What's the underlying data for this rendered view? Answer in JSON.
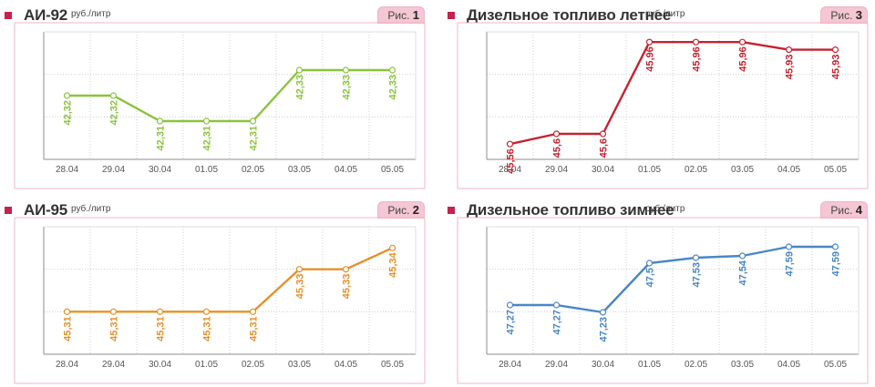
{
  "charts": [
    {
      "id": "ai92",
      "title": "АИ-92",
      "unit": "руб./литр",
      "fig_prefix": "Рис.",
      "fig_num": "1",
      "color": "#8ac43f",
      "chart_data": {
        "type": "line",
        "categories": [
          "28.04",
          "29.04",
          "30.04",
          "01.05",
          "02.05",
          "03.05",
          "04.05",
          "05.05"
        ],
        "series": [
          {
            "values": [
              42.32,
              42.32,
              42.31,
              42.31,
              42.31,
              42.33,
              42.33,
              42.33
            ]
          }
        ],
        "labels": [
          "42,32",
          "42,32",
          "42,31",
          "42,31",
          "42,31",
          "42,33",
          "42,33",
          "42,33"
        ],
        "ylim": [
          42.295,
          42.345
        ],
        "grid": true
      }
    },
    {
      "id": "dt-summer",
      "title": "Дизельное топливо летнее",
      "unit": "руб./литр",
      "fig_prefix": "Рис.",
      "fig_num": "3",
      "color": "#c42330",
      "chart_data": {
        "type": "line",
        "categories": [
          "28.04",
          "29.04",
          "30.04",
          "01.05",
          "02.05",
          "03.05",
          "04.05",
          "05.05"
        ],
        "series": [
          {
            "values": [
              45.56,
              45.6,
              45.6,
              45.96,
              45.96,
              45.96,
              45.93,
              45.93
            ]
          }
        ],
        "labels": [
          "45,56",
          "45,6",
          "45,6",
          "45,96",
          "45,96",
          "45,96",
          "45,93",
          "45,93"
        ],
        "ylim": [
          45.5,
          46.0
        ],
        "grid": true
      }
    },
    {
      "id": "ai95",
      "title": "АИ-95",
      "unit": "руб./литр",
      "fig_prefix": "Рис.",
      "fig_num": "2",
      "color": "#e8902a",
      "chart_data": {
        "type": "line",
        "categories": [
          "28.04",
          "29.04",
          "30.04",
          "01.05",
          "02.05",
          "03.05",
          "04.05",
          "05.05"
        ],
        "series": [
          {
            "values": [
              45.31,
              45.31,
              45.31,
              45.31,
              45.31,
              45.33,
              45.33,
              45.34
            ]
          }
        ],
        "labels": [
          "45,31",
          "45,31",
          "45,31",
          "45,31",
          "45,31",
          "45,33",
          "45,33",
          "45,34"
        ],
        "ylim": [
          45.29,
          45.35
        ],
        "grid": true
      }
    },
    {
      "id": "dt-winter",
      "title": "Дизельное топливо зимнее",
      "unit": "руб./литр",
      "fig_prefix": "Рис.",
      "fig_num": "4",
      "color": "#4a86c6",
      "chart_data": {
        "type": "line",
        "categories": [
          "28.04",
          "29.04",
          "30.04",
          "01.05",
          "02.05",
          "03.05",
          "04.05",
          "05.05"
        ],
        "series": [
          {
            "values": [
              47.27,
              47.27,
              47.23,
              47.5,
              47.53,
              47.54,
              47.59,
              47.59
            ]
          }
        ],
        "labels": [
          "47,27",
          "47,27",
          "47,23",
          "47,5",
          "47,53",
          "47,54",
          "47,59",
          "47,59"
        ],
        "ylim": [
          47.0,
          47.7
        ],
        "grid": true
      }
    }
  ]
}
